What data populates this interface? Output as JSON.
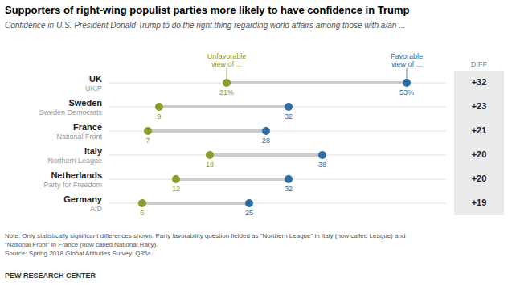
{
  "chart_data": {
    "type": "dumbbell",
    "title": "Supporters of right-wing populist parties more likely to have confidence in Trump",
    "subtitle": "Confidence in U.S. President Donald Trump to do the right thing regarding world affairs among those with a/an ...",
    "categories": [
      "UK",
      "Sweden",
      "France",
      "Italy",
      "Netherlands",
      "Germany"
    ],
    "parties": [
      "UKIP",
      "Sweden Democrats",
      "National Front",
      "Northern League",
      "Party for Freedom",
      "AfD"
    ],
    "series": [
      {
        "name": "Unfavorable\nview of ...",
        "color": "#8B9B2C",
        "values": [
          21,
          9,
          7,
          18,
          12,
          6
        ],
        "value_labels": [
          "21%",
          "9",
          "7",
          "18",
          "12",
          "6"
        ]
      },
      {
        "name": "Favorable\nview of ...",
        "color": "#2E6DA4",
        "values": [
          53,
          32,
          28,
          38,
          32,
          25
        ],
        "value_labels": [
          "53%",
          "32",
          "28",
          "38",
          "32",
          "25"
        ]
      }
    ],
    "diff_label": "DIFF",
    "diffs": [
      "+32",
      "+23",
      "+21",
      "+20",
      "+20",
      "+19"
    ],
    "xlim": [
      0,
      60
    ],
    "tick_labels": false,
    "grid": false,
    "data_labels": true,
    "note": "Note: Only statistically significant differences shown. Party favorability question fielded as “Northern League” in Italy (now called League) and\n“National Front” in France (now called National Rally).\nSource: Spring 2018 Global Attitudes Survey. Q35a.",
    "source": "PEW RESEARCH CENTER"
  }
}
